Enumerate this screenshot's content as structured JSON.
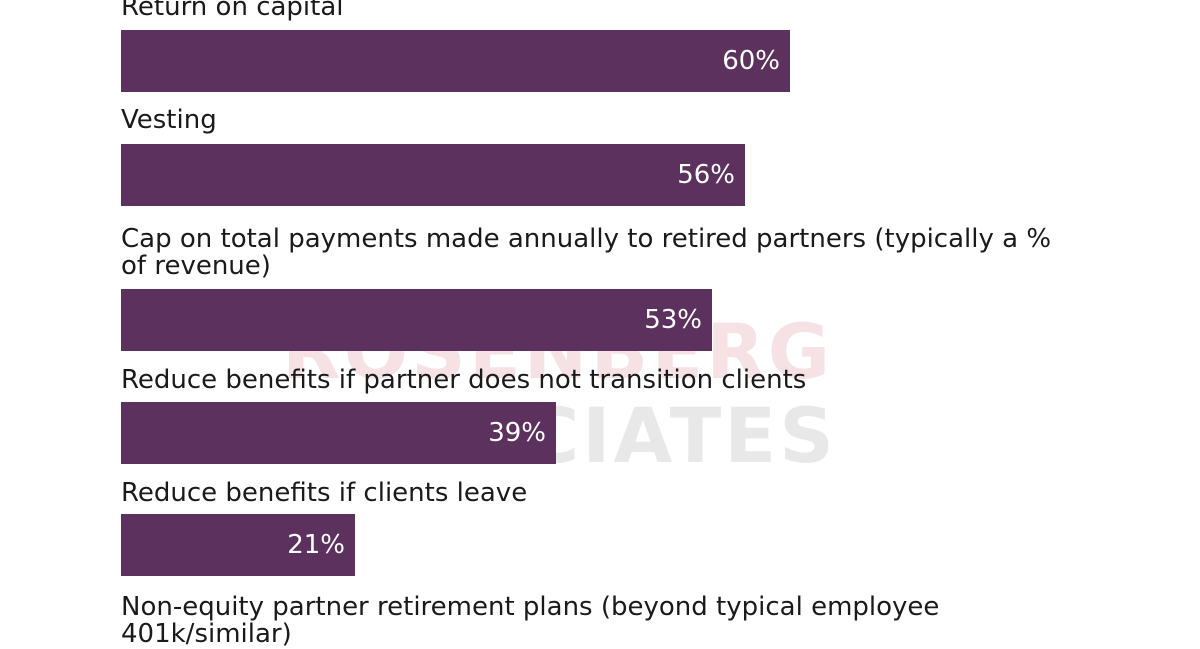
{
  "colors": {
    "bar": "#5c315d",
    "label_text": "#1a1a1a",
    "value_text": "#ffffff"
  },
  "watermark": {
    "line1": "ROSENBERG",
    "line2": "ASSOCIATES"
  },
  "chart_data": {
    "type": "bar",
    "orientation": "horizontal",
    "title": "",
    "xlabel": "",
    "ylabel": "",
    "xlim": [
      0,
      100
    ],
    "grid": false,
    "legend": "none",
    "categories": [
      "Return on capital",
      "Vesting",
      "Cap on total payments made annually to retired partners (typically a % of revenue)",
      "Reduce benefits if partner does not transition clients",
      "Reduce benefits if clients leave",
      "Non-equity partner retirement plans (beyond typical employee 401k/similar)"
    ],
    "values": [
      60,
      56,
      53,
      39,
      21,
      null
    ],
    "value_labels": [
      "60%",
      "56%",
      "53%",
      "39%",
      "21%",
      ""
    ]
  }
}
